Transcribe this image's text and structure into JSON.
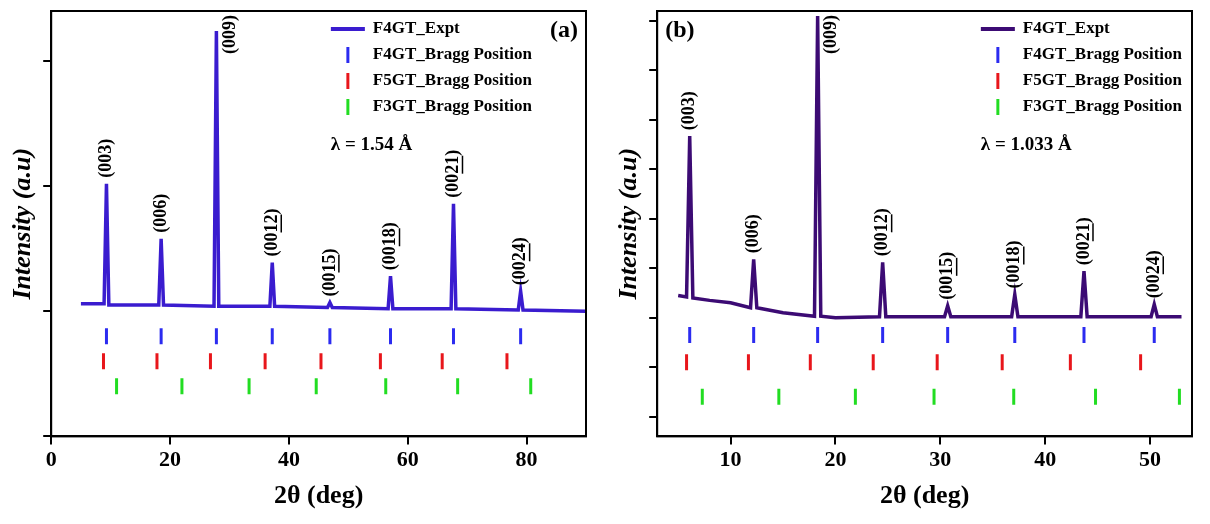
{
  "chart_data": [
    {
      "type": "line",
      "panel": "(a)",
      "x_label": "2θ (deg)",
      "y_label": "Intensity (a.u)",
      "xlim": [
        0,
        90
      ],
      "xticks": [
        0,
        20,
        40,
        60,
        80
      ],
      "ylim": [
        -1,
        2.4
      ],
      "yticks": [
        -1,
        0,
        1,
        2
      ],
      "tick_labels": "x",
      "grid": false,
      "legend": "upper right",
      "annotations": [
        "λ = 1.54 Å"
      ],
      "series": [
        {
          "name": "F4GT_Expt",
          "type": "line",
          "color": "#3a1ccf",
          "x": [
            5,
            8.9,
            9.3,
            9.7,
            18.1,
            18.5,
            18.9,
            27.4,
            27.8,
            28.2,
            36.8,
            37.2,
            37.6,
            46.5,
            46.9,
            47.3,
            56.7,
            57.1,
            57.5,
            67.3,
            67.7,
            68.1,
            78.6,
            79.0,
            79.4,
            90
          ],
          "values": [
            0.06,
            0.06,
            1.02,
            0.05,
            0.05,
            0.58,
            0.05,
            0.04,
            2.24,
            0.04,
            0.04,
            0.39,
            0.04,
            0.03,
            0.07,
            0.03,
            0.02,
            0.28,
            0.02,
            0.02,
            0.86,
            0.02,
            0.01,
            0.16,
            0.01,
            0.0
          ]
        },
        {
          "name": "F4GT_Bragg Position",
          "type": "scatter",
          "marker": "vline",
          "color": "#2b2bf0",
          "x": [
            9.3,
            18.5,
            27.8,
            37.2,
            46.9,
            57.1,
            67.7,
            79.0
          ],
          "values": [
            -0.2,
            -0.2,
            -0.2,
            -0.2,
            -0.2,
            -0.2,
            -0.2,
            -0.2
          ]
        },
        {
          "name": "F5GT_Bragg Position",
          "type": "scatter",
          "marker": "vline",
          "color": "#e8161b",
          "x": [
            8.8,
            17.8,
            26.8,
            36.0,
            45.4,
            55.4,
            65.8,
            76.7
          ],
          "values": [
            -0.4,
            -0.4,
            -0.4,
            -0.4,
            -0.4,
            -0.4,
            -0.4,
            -0.4
          ]
        },
        {
          "name": "F3GT_Bragg Position",
          "type": "scatter",
          "marker": "vline",
          "color": "#22dd22",
          "x": [
            11.0,
            22.0,
            33.3,
            44.6,
            56.3,
            68.4,
            80.7
          ],
          "values": [
            -0.6,
            -0.6,
            -0.6,
            -0.6,
            -0.6,
            -0.6,
            -0.6
          ]
        }
      ],
      "peak_labels": [
        {
          "label": "(003)",
          "x": 9.3,
          "y": 1.02
        },
        {
          "label": "(006)",
          "x": 18.5,
          "y": 0.58
        },
        {
          "label": "(009)",
          "x": 27.8,
          "y": 2.24
        },
        {
          "label": "(0012)",
          "x": 37.2,
          "y": 0.39
        },
        {
          "label": "(0015)",
          "x": 46.9,
          "y": 0.07
        },
        {
          "label": "(0018)",
          "x": 57.1,
          "y": 0.28
        },
        {
          "label": "(0021)",
          "x": 67.7,
          "y": 0.86
        },
        {
          "label": "(0024)",
          "x": 79.0,
          "y": 0.16
        }
      ]
    },
    {
      "type": "line",
      "panel": "(b)",
      "x_label": "2θ (deg)",
      "y_label": "Intensity (a.u)",
      "xlim": [
        3,
        54
      ],
      "xticks": [
        10,
        20,
        30,
        40,
        50
      ],
      "ylim": [
        -2.4,
        6.2
      ],
      "yticks": [
        -2,
        -1,
        0,
        1,
        2,
        3,
        4,
        5,
        6
      ],
      "tick_labels": "x",
      "grid": false,
      "legend": "upper right",
      "annotations": [
        "λ = 1.033 Å"
      ],
      "series": [
        {
          "name": "F4GT_Expt",
          "type": "line",
          "color": "#3c0b74",
          "x": [
            5,
            5.8,
            6.1,
            6.4,
            8,
            10,
            11.9,
            12.2,
            12.5,
            15,
            18.0,
            18.3,
            18.6,
            20,
            24.2,
            24.5,
            24.8,
            30.4,
            30.7,
            31.0,
            36.8,
            37.1,
            37.4,
            43.4,
            43.7,
            44.0,
            50.1,
            50.4,
            50.7,
            53
          ],
          "values": [
            0.45,
            0.42,
            3.67,
            0.4,
            0.35,
            0.3,
            0.2,
            1.18,
            0.2,
            0.1,
            0.03,
            6.1,
            0.03,
            0.0,
            0.02,
            1.12,
            0.02,
            0.02,
            0.24,
            0.02,
            0.02,
            0.47,
            0.02,
            0.02,
            0.94,
            0.02,
            0.02,
            0.27,
            0.02,
            0.02
          ]
        },
        {
          "name": "F4GT_Bragg Position",
          "type": "scatter",
          "marker": "vline",
          "color": "#2b2bf0",
          "x": [
            6.1,
            12.2,
            18.3,
            24.5,
            30.7,
            37.1,
            43.7,
            50.4
          ],
          "values": [
            -0.35,
            -0.35,
            -0.35,
            -0.35,
            -0.35,
            -0.35,
            -0.35,
            -0.35
          ]
        },
        {
          "name": "F5GT_Bragg Position",
          "type": "scatter",
          "marker": "vline",
          "color": "#e8161b",
          "x": [
            5.8,
            11.7,
            17.6,
            23.6,
            29.7,
            35.9,
            42.4,
            49.1
          ],
          "values": [
            -0.9,
            -0.9,
            -0.9,
            -0.9,
            -0.9,
            -0.9,
            -0.9,
            -0.9
          ]
        },
        {
          "name": "F3GT_Bragg Position",
          "type": "scatter",
          "marker": "vline",
          "color": "#22dd22",
          "x": [
            7.3,
            14.6,
            21.9,
            29.4,
            37.0,
            44.8,
            52.8
          ],
          "values": [
            -1.6,
            -1.6,
            -1.6,
            -1.6,
            -1.6,
            -1.6,
            -1.6
          ]
        }
      ],
      "peak_labels": [
        {
          "label": "(003)",
          "x": 6.1,
          "y": 3.67
        },
        {
          "label": "(006)",
          "x": 12.2,
          "y": 1.18
        },
        {
          "label": "(009)",
          "x": 18.3,
          "y": 6.1
        },
        {
          "label": "(0012)",
          "x": 24.5,
          "y": 1.12
        },
        {
          "label": "(0015)",
          "x": 30.7,
          "y": 0.24
        },
        {
          "label": "(0018)",
          "x": 37.1,
          "y": 0.47
        },
        {
          "label": "(0021)",
          "x": 43.7,
          "y": 0.94
        },
        {
          "label": "(0024)",
          "x": 50.4,
          "y": 0.27
        }
      ]
    }
  ]
}
